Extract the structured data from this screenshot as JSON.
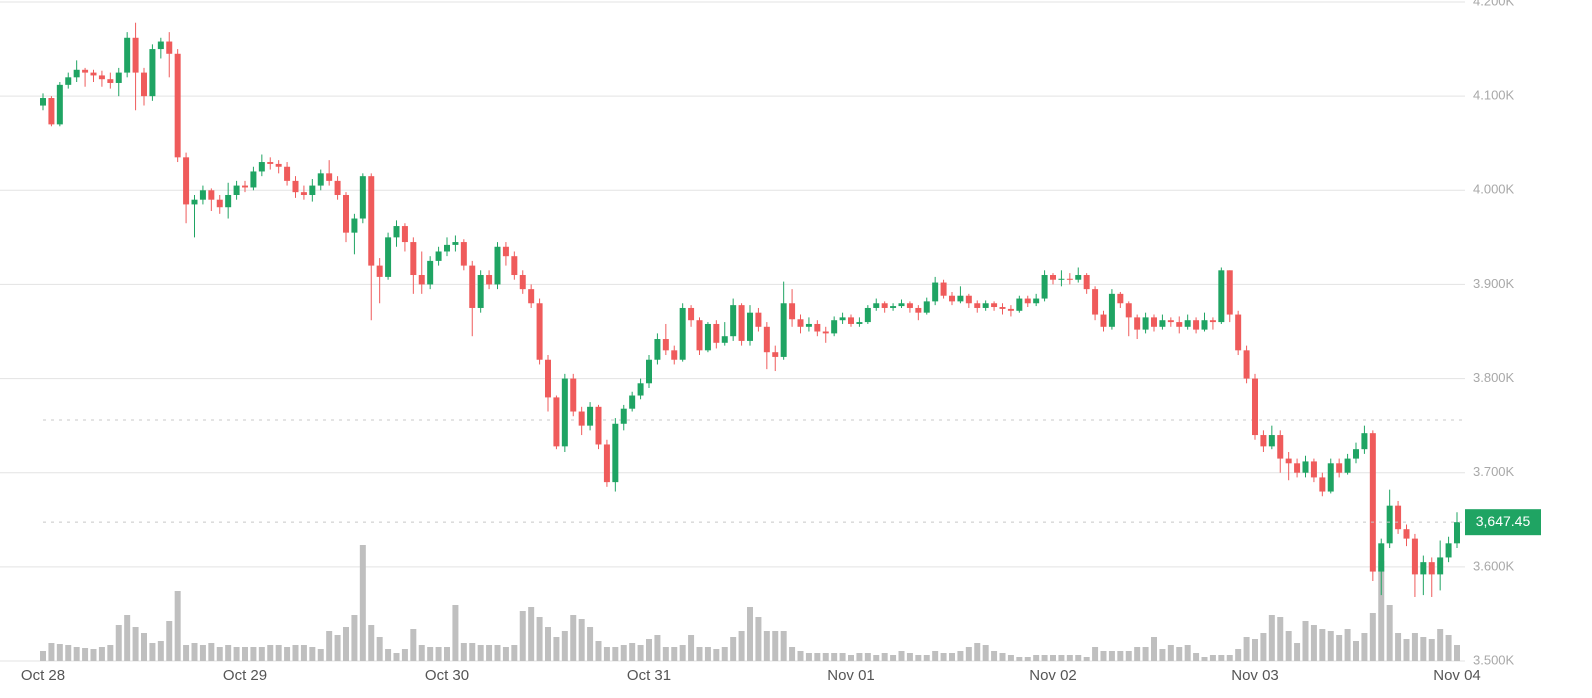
{
  "chart_data": {
    "type": "candlestick",
    "up_color": "#1fa463",
    "down_color": "#ef5b5b",
    "volume_color": "#bfbfbf",
    "grid": true,
    "ylim": [
      3500,
      4200
    ],
    "yticks": [
      {
        "value": 3500,
        "label": "3.500K"
      },
      {
        "value": 3600,
        "label": "3.600K"
      },
      {
        "value": 3700,
        "label": "3.700K"
      },
      {
        "value": 3800,
        "label": "3.800K"
      },
      {
        "value": 3900,
        "label": "3.900K"
      },
      {
        "value": 4000,
        "label": "4.000K"
      },
      {
        "value": 4100,
        "label": "4.100K"
      },
      {
        "value": 4200,
        "label": "4.200K"
      }
    ],
    "reference_price": 3756,
    "last_price": {
      "value": 3647.45,
      "label": "3,647.45"
    },
    "categories": [
      "Oct 28",
      null,
      null,
      null,
      null,
      null,
      null,
      null,
      null,
      null,
      null,
      null,
      null,
      null,
      null,
      null,
      null,
      null,
      null,
      null,
      null,
      null,
      null,
      null,
      "Oct 29",
      null,
      null,
      null,
      null,
      null,
      null,
      null,
      null,
      null,
      null,
      null,
      null,
      null,
      null,
      null,
      null,
      null,
      null,
      null,
      null,
      null,
      null,
      null,
      "Oct 30",
      null,
      null,
      null,
      null,
      null,
      null,
      null,
      null,
      null,
      null,
      null,
      null,
      null,
      null,
      null,
      null,
      null,
      null,
      null,
      null,
      null,
      null,
      null,
      "Oct 31",
      null,
      null,
      null,
      null,
      null,
      null,
      null,
      null,
      null,
      null,
      null,
      null,
      null,
      null,
      null,
      null,
      null,
      null,
      null,
      null,
      null,
      null,
      null,
      "Nov 01",
      null,
      null,
      null,
      null,
      null,
      null,
      null,
      null,
      null,
      null,
      null,
      null,
      null,
      null,
      null,
      null,
      null,
      null,
      null,
      null,
      null,
      null,
      null,
      "Nov 02",
      null,
      null,
      null,
      null,
      null,
      null,
      null,
      null,
      null,
      null,
      null,
      null,
      null,
      null,
      null,
      null,
      null,
      null,
      null,
      null,
      null,
      null,
      null,
      "Nov 03",
      null,
      null,
      null,
      null,
      null,
      null,
      null,
      null,
      null,
      null,
      null,
      null,
      null,
      null,
      null,
      null,
      null,
      null,
      null,
      null,
      null,
      null,
      null,
      "Nov 04"
    ],
    "open": [
      4090,
      4098,
      4070,
      4112,
      4120,
      4128,
      4125,
      4122,
      4118,
      4114,
      4125,
      4162,
      4125,
      4100,
      4150,
      4158,
      4145,
      4035,
      3985,
      3990,
      4000,
      3990,
      3982,
      3995,
      4005,
      4003,
      4020,
      4030,
      4028,
      4025,
      4010,
      3998,
      3995,
      4005,
      4018,
      4010,
      3995,
      3955,
      3970,
      4015,
      3920,
      3908,
      3950,
      3962,
      3945,
      3910,
      3900,
      3925,
      3935,
      3942,
      3945,
      3920,
      3875,
      3910,
      3900,
      3940,
      3930,
      3910,
      3895,
      3880,
      3820,
      3780,
      3728,
      3800,
      3765,
      3750,
      3770,
      3730,
      3690,
      3752,
      3768,
      3782,
      3795,
      3820,
      3842,
      3830,
      3820,
      3875,
      3862,
      3830,
      3858,
      3838,
      3845,
      3878,
      3840,
      3870,
      3855,
      3828,
      3823,
      3880,
      3863,
      3855,
      3858,
      3850,
      3848,
      3862,
      3865,
      3858,
      3860,
      3875,
      3880,
      3875,
      3877,
      3880,
      3875,
      3870,
      3882,
      3902,
      3888,
      3882,
      3888,
      3880,
      3875,
      3880,
      3876,
      3874,
      3872,
      3885,
      3880,
      3885,
      3910,
      3905,
      3906,
      3905,
      3910,
      3895,
      3868,
      3855,
      3890,
      3880,
      3865,
      3852,
      3865,
      3855,
      3862,
      3860,
      3855,
      3862,
      3852,
      3862,
      3860,
      3915,
      3868,
      3830,
      3800,
      3740,
      3728,
      3740,
      3715,
      3710,
      3700,
      3712,
      3695,
      3680,
      3710,
      3700,
      3715,
      3725,
      3742,
      3595,
      3625,
      3665,
      3640,
      3630,
      3592,
      3605,
      3592,
      3610,
      3625
    ],
    "high": [
      4103,
      4100,
      4115,
      4125,
      4138,
      4130,
      4128,
      4127,
      4125,
      4130,
      4168,
      4178,
      4130,
      4155,
      4162,
      4168,
      4150,
      4040,
      3995,
      4005,
      4002,
      3995,
      4008,
      4010,
      4010,
      4025,
      4038,
      4035,
      4032,
      4030,
      4015,
      4005,
      4012,
      4022,
      4032,
      4015,
      3998,
      3975,
      4018,
      4018,
      3928,
      3955,
      3968,
      3965,
      3950,
      3935,
      3930,
      3940,
      3950,
      3952,
      3948,
      3925,
      3915,
      3915,
      3945,
      3945,
      3935,
      3915,
      3900,
      3885,
      3825,
      3782,
      3805,
      3805,
      3770,
      3775,
      3772,
      3735,
      3758,
      3772,
      3786,
      3800,
      3825,
      3848,
      3858,
      3835,
      3880,
      3878,
      3865,
      3860,
      3862,
      3860,
      3885,
      3880,
      3878,
      3875,
      3860,
      3835,
      3903,
      3895,
      3868,
      3865,
      3862,
      3855,
      3866,
      3870,
      3868,
      3865,
      3878,
      3885,
      3882,
      3880,
      3884,
      3882,
      3878,
      3886,
      3908,
      3905,
      3892,
      3898,
      3890,
      3883,
      3883,
      3882,
      3880,
      3878,
      3888,
      3888,
      3890,
      3915,
      3912,
      3915,
      3912,
      3918,
      3912,
      3898,
      3872,
      3895,
      3892,
      3882,
      3868,
      3870,
      3868,
      3868,
      3865,
      3866,
      3868,
      3865,
      3870,
      3865,
      3918,
      3915,
      3872,
      3835,
      3805,
      3745,
      3750,
      3745,
      3722,
      3715,
      3718,
      3715,
      3700,
      3715,
      3715,
      3720,
      3732,
      3750,
      3745,
      3630,
      3682,
      3670,
      3645,
      3635,
      3612,
      3610,
      3628,
      3632,
      3658
    ],
    "low": [
      4085,
      4068,
      4068,
      4108,
      4115,
      4110,
      4115,
      4110,
      4108,
      4100,
      4120,
      4085,
      4090,
      4095,
      4140,
      4120,
      4030,
      3965,
      3950,
      3985,
      3978,
      3975,
      3970,
      3990,
      3998,
      4000,
      4015,
      4022,
      4018,
      4005,
      3992,
      3990,
      3988,
      4000,
      4005,
      3990,
      3945,
      3932,
      3965,
      3862,
      3880,
      3905,
      3940,
      3935,
      3890,
      3890,
      3895,
      3920,
      3930,
      3935,
      3915,
      3845,
      3870,
      3895,
      3895,
      3920,
      3905,
      3890,
      3875,
      3815,
      3765,
      3725,
      3722,
      3760,
      3740,
      3745,
      3725,
      3685,
      3680,
      3745,
      3765,
      3778,
      3790,
      3815,
      3825,
      3815,
      3818,
      3855,
      3825,
      3828,
      3832,
      3835,
      3840,
      3835,
      3835,
      3850,
      3810,
      3808,
      3820,
      3855,
      3848,
      3850,
      3845,
      3838,
      3845,
      3858,
      3855,
      3855,
      3858,
      3872,
      3870,
      3872,
      3875,
      3870,
      3862,
      3868,
      3878,
      3885,
      3878,
      3880,
      3875,
      3870,
      3872,
      3872,
      3868,
      3866,
      3870,
      3876,
      3877,
      3882,
      3900,
      3898,
      3900,
      3902,
      3890,
      3862,
      3850,
      3852,
      3875,
      3845,
      3842,
      3848,
      3850,
      3852,
      3855,
      3848,
      3852,
      3848,
      3850,
      3852,
      3858,
      3860,
      3825,
      3795,
      3735,
      3722,
      3725,
      3700,
      3692,
      3695,
      3695,
      3690,
      3675,
      3678,
      3695,
      3698,
      3710,
      3720,
      3585,
      3570,
      3620,
      3635,
      3622,
      3568,
      3570,
      3568,
      3575,
      3605,
      3620
    ],
    "close": [
      4098,
      4070,
      4112,
      4120,
      4128,
      4125,
      4122,
      4118,
      4114,
      4125,
      4162,
      4125,
      4100,
      4150,
      4158,
      4145,
      4035,
      3985,
      3990,
      4000,
      3990,
      3982,
      3995,
      4005,
      4003,
      4020,
      4030,
      4028,
      4025,
      4010,
      3998,
      3995,
      4005,
      4018,
      4010,
      3995,
      3955,
      3970,
      4015,
      3920,
      3908,
      3950,
      3962,
      3945,
      3910,
      3900,
      3925,
      3935,
      3942,
      3945,
      3920,
      3875,
      3910,
      3900,
      3940,
      3930,
      3910,
      3895,
      3880,
      3820,
      3780,
      3728,
      3800,
      3765,
      3750,
      3770,
      3730,
      3690,
      3752,
      3768,
      3782,
      3795,
      3820,
      3842,
      3830,
      3820,
      3875,
      3862,
      3830,
      3858,
      3838,
      3845,
      3878,
      3840,
      3870,
      3855,
      3828,
      3823,
      3880,
      3863,
      3855,
      3858,
      3850,
      3848,
      3862,
      3865,
      3858,
      3860,
      3875,
      3880,
      3875,
      3877,
      3880,
      3875,
      3870,
      3882,
      3902,
      3888,
      3882,
      3888,
      3880,
      3875,
      3880,
      3876,
      3874,
      3872,
      3885,
      3880,
      3885,
      3910,
      3905,
      3906,
      3905,
      3910,
      3895,
      3868,
      3855,
      3890,
      3880,
      3865,
      3852,
      3865,
      3855,
      3862,
      3860,
      3855,
      3862,
      3852,
      3862,
      3860,
      3915,
      3868,
      3830,
      3800,
      3740,
      3728,
      3740,
      3715,
      3710,
      3700,
      3712,
      3695,
      3680,
      3710,
      3700,
      3715,
      3725,
      3742,
      3595,
      3625,
      3665,
      3640,
      3630,
      3592,
      3605,
      3592,
      3610,
      3625,
      3647.45
    ],
    "volume": [
      10,
      18,
      17,
      16,
      14,
      13,
      12,
      14,
      16,
      36,
      46,
      34,
      28,
      18,
      20,
      40,
      70,
      16,
      18,
      16,
      18,
      14,
      16,
      14,
      14,
      14,
      14,
      16,
      16,
      14,
      16,
      16,
      14,
      12,
      30,
      26,
      34,
      46,
      116,
      36,
      24,
      12,
      8,
      12,
      32,
      16,
      14,
      14,
      14,
      56,
      18,
      18,
      16,
      16,
      16,
      14,
      16,
      50,
      54,
      44,
      34,
      24,
      30,
      46,
      42,
      34,
      20,
      14,
      14,
      16,
      18,
      16,
      22,
      26,
      14,
      14,
      16,
      26,
      14,
      14,
      12,
      14,
      24,
      30,
      54,
      44,
      30,
      30,
      30,
      14,
      10,
      8,
      8,
      8,
      8,
      8,
      6,
      8,
      8,
      6,
      8,
      6,
      10,
      8,
      6,
      6,
      10,
      8,
      8,
      10,
      14,
      18,
      16,
      10,
      8,
      6,
      4,
      4,
      6,
      6,
      6,
      6,
      6,
      6,
      4,
      14,
      10,
      10,
      10,
      10,
      14,
      14,
      24,
      12,
      16,
      14,
      16,
      8,
      4,
      6,
      6,
      6,
      12,
      24,
      22,
      28,
      46,
      44,
      30,
      18,
      40,
      36,
      32,
      30,
      26,
      32,
      20,
      28,
      48,
      100,
      56,
      28,
      22,
      28,
      24,
      22,
      32,
      26,
      16
    ]
  }
}
